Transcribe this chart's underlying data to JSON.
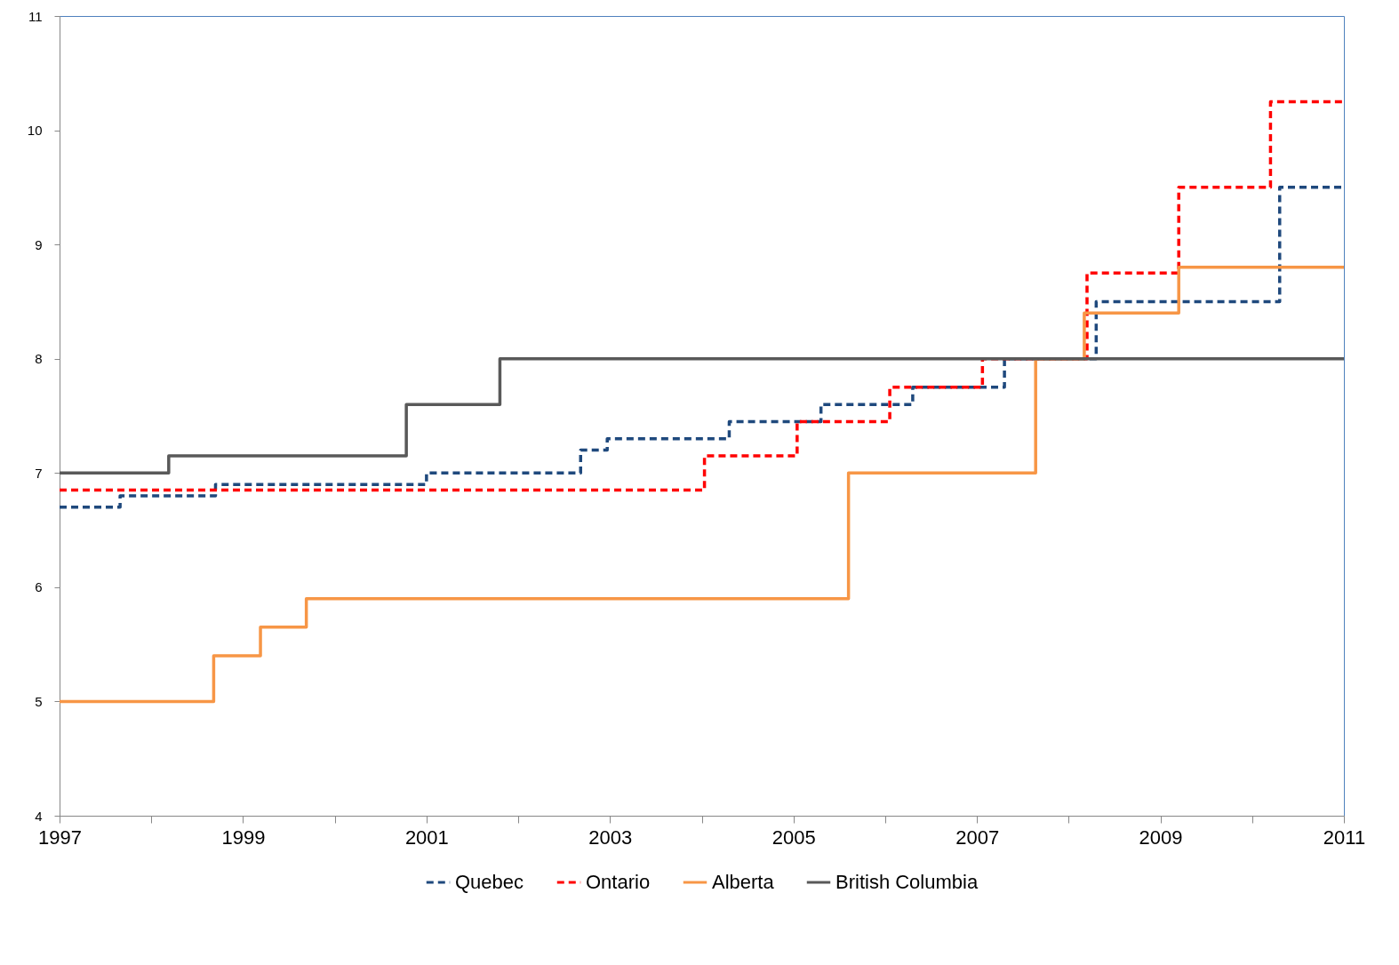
{
  "chart_data": {
    "type": "step",
    "xlim": [
      1997,
      2011
    ],
    "ylim": [
      4,
      11
    ],
    "xticks": [
      1997,
      {
        "value": 1998,
        "label": null
      },
      1999,
      {
        "value": 2000,
        "label": null
      },
      2001,
      {
        "value": 2002,
        "label": null
      },
      2003,
      {
        "value": 2004,
        "label": null
      },
      2005,
      {
        "value": 2006,
        "label": null
      },
      2007,
      {
        "value": 2008,
        "label": null
      },
      2009,
      {
        "value": 2010,
        "label": null
      },
      2011
    ],
    "yticks": [
      4,
      5,
      6,
      7,
      8,
      9,
      10,
      11
    ],
    "grid": false,
    "legend": "bottom",
    "series": [
      {
        "name": "Quebec",
        "color": "#1f497d",
        "line_style": "dashed",
        "x": [
          1997,
          1997.66,
          1998.7,
          2001.0,
          2002.68,
          2002.97,
          2004.3,
          2005.3,
          2006.3,
          2007.3,
          2008.3,
          2010.3,
          2011
        ],
        "values": [
          6.7,
          6.8,
          6.9,
          7.0,
          7.2,
          7.3,
          7.45,
          7.6,
          7.75,
          8.0,
          8.5,
          9.5,
          9.5
        ]
      },
      {
        "name": "Ontario",
        "color": "#ff0000",
        "line_style": "dashed",
        "x": [
          1997,
          2004.03,
          2005.04,
          2006.05,
          2007.06,
          2008.2,
          2009.2,
          2010.2,
          2011
        ],
        "values": [
          6.85,
          7.15,
          7.45,
          7.75,
          8.0,
          8.75,
          9.5,
          10.25,
          10.25
        ]
      },
      {
        "name": "Alberta",
        "color": "#f79646",
        "line_style": "solid",
        "x": [
          1997,
          1998.68,
          1999.19,
          1999.69,
          2005.6,
          2007.64,
          2008.17,
          2009.2,
          2011
        ],
        "values": [
          5.0,
          5.4,
          5.65,
          5.9,
          7.0,
          8.0,
          8.4,
          8.8,
          8.8
        ]
      },
      {
        "name": "British Columbia",
        "color": "#595959",
        "line_style": "solid",
        "x": [
          1997,
          1998.19,
          2000.78,
          2001.8,
          2011
        ],
        "values": [
          7.0,
          7.15,
          7.6,
          8.0,
          8.0
        ]
      }
    ]
  }
}
